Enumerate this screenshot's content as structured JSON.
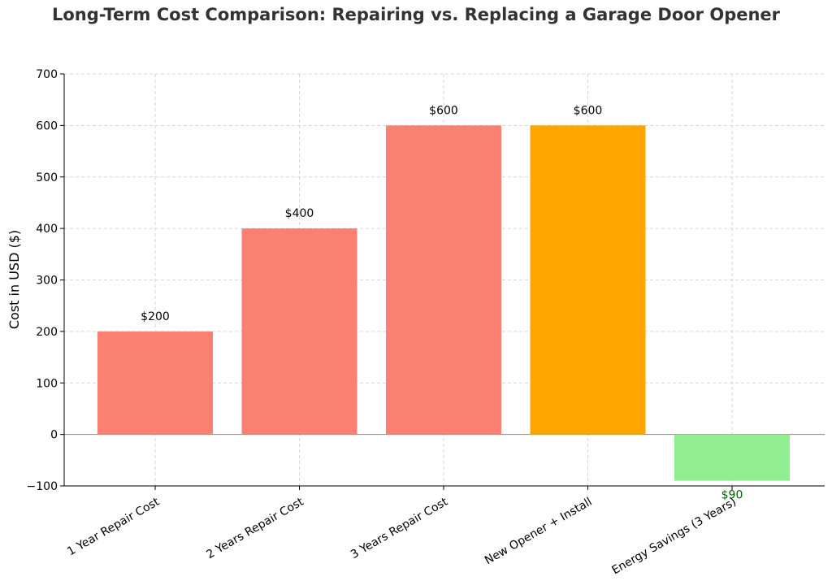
{
  "chart_data": {
    "type": "bar",
    "title": "Long-Term Cost Comparison: Repairing vs. Replacing a Garage Door Opener",
    "xlabel": "",
    "ylabel": "Cost in USD ($)",
    "ylim": [
      -100,
      700
    ],
    "yticks": [
      -100,
      0,
      100,
      200,
      300,
      400,
      500,
      600,
      700
    ],
    "ytick_labels": [
      "−100",
      "0",
      "100",
      "200",
      "300",
      "400",
      "500",
      "600",
      "700"
    ],
    "grid": true,
    "legend": "none",
    "categories": [
      "1 Year Repair Cost",
      "2 Years Repair Cost",
      "3 Years Repair Cost",
      "New Opener + Install",
      "Energy Savings (3 Years)"
    ],
    "values": [
      200,
      400,
      600,
      600,
      -90
    ],
    "data_labels": [
      "$200",
      "$400",
      "$600",
      "$600",
      "$90"
    ],
    "bar_colors": [
      "#fa8072",
      "#fa8072",
      "#fa8072",
      "#ffa500",
      "#90ee90"
    ],
    "label_colors": [
      "#000000",
      "#000000",
      "#000000",
      "#000000",
      "#006400"
    ]
  }
}
